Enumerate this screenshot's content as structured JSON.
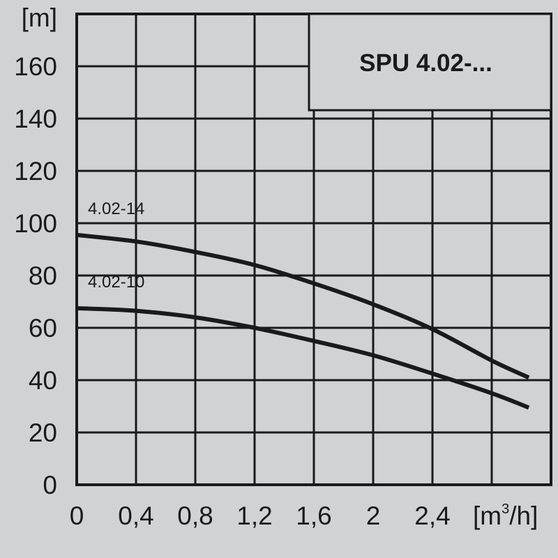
{
  "chart_data": {
    "type": "line",
    "title": "SPU 4.02-...",
    "ylabel": "[m]",
    "xlabel": "[m³/h]",
    "xlabel_parts": {
      "pre": "[m",
      "sup": "3",
      "post": "/h]"
    },
    "xlim": [
      0,
      3.2
    ],
    "ylim": [
      0,
      180
    ],
    "grid": true,
    "x_ticks": [
      0,
      0.4,
      0.8,
      1.2,
      1.6,
      2,
      2.4
    ],
    "x_tick_labels": [
      "0",
      "0,4",
      "0,8",
      "1,2",
      "1,6",
      "2",
      "2,4"
    ],
    "y_ticks": [
      0,
      20,
      40,
      60,
      80,
      100,
      120,
      140,
      160
    ],
    "y_tick_labels": [
      "0",
      "20",
      "40",
      "60",
      "80",
      "100",
      "120",
      "140",
      "160"
    ],
    "series": [
      {
        "name": "4.02-14",
        "x": [
          0,
          0.4,
          0.8,
          1.2,
          1.6,
          2.0,
          2.4,
          2.8,
          3.05
        ],
        "y": [
          95.5,
          93,
          89,
          84,
          77,
          69,
          59.5,
          47.5,
          41
        ]
      },
      {
        "name": "4.02-10",
        "x": [
          0,
          0.4,
          0.8,
          1.2,
          1.6,
          2.0,
          2.4,
          2.8,
          3.05
        ],
        "y": [
          67.5,
          66.5,
          64,
          60,
          55,
          49.5,
          42.5,
          35,
          29.5
        ]
      }
    ],
    "colors": {
      "background": "#d1d2d4",
      "line": "#1a1a1a"
    }
  }
}
